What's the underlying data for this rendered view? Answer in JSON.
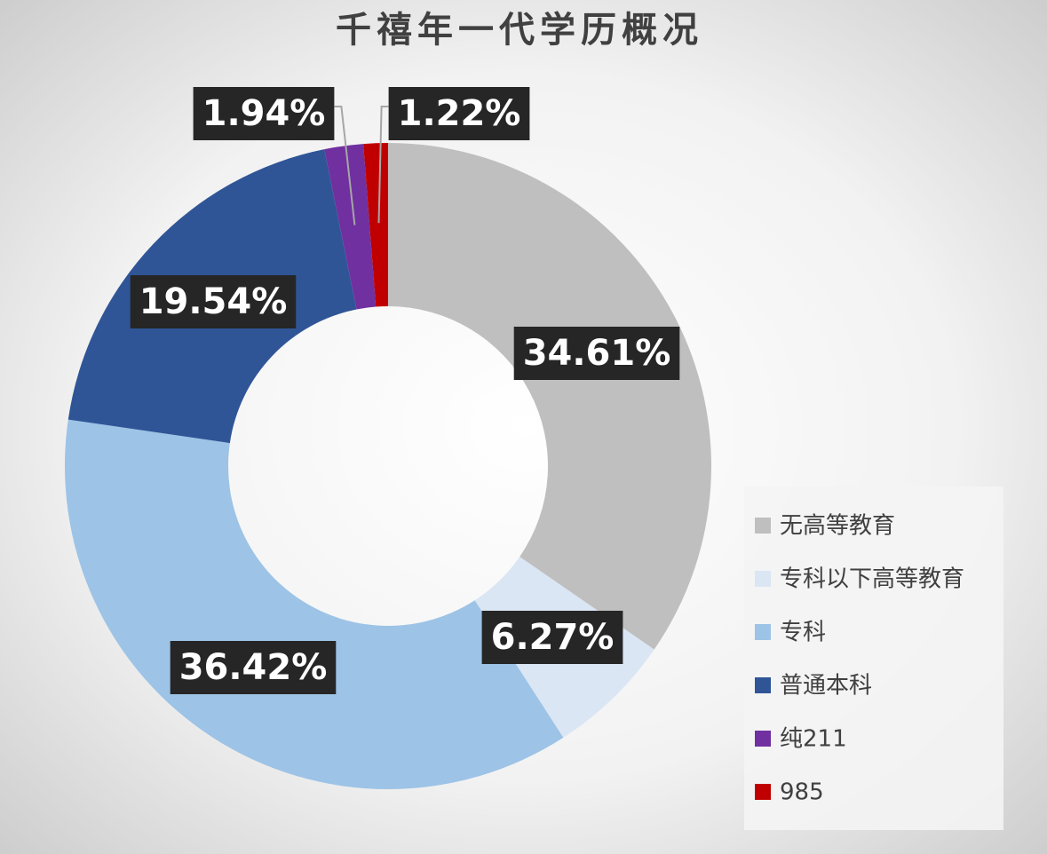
{
  "chart_data": {
    "type": "donut",
    "title": "千禧年一代学历概况",
    "categories": [
      "无高等教育",
      "专科以下高等教育",
      "专科",
      "普通本科",
      "纯211",
      "985"
    ],
    "values": [
      34.61,
      6.27,
      36.42,
      19.54,
      1.94,
      1.22
    ],
    "value_labels": [
      "34.61%",
      "6.27%",
      "36.42%",
      "19.54%",
      "1.94%",
      "1.22%"
    ],
    "colors": [
      "#bfbfbf",
      "#dae6f4",
      "#9dc3e6",
      "#2f5597",
      "#7030a0",
      "#c00000"
    ],
    "legend": "right"
  }
}
